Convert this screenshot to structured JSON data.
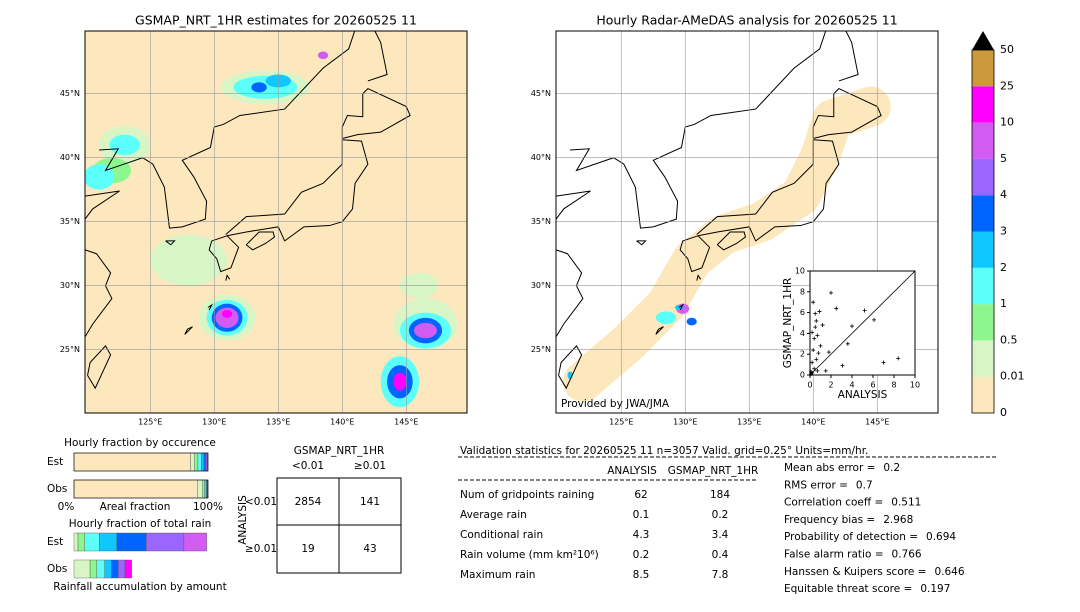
{
  "left_map": {
    "title": "GSMAP_NRT_1HR estimates for 20260525 11",
    "lat_labels": [
      "45°N",
      "40°N",
      "35°N",
      "30°N",
      "25°N"
    ],
    "lon_labels": [
      "125°E",
      "130°E",
      "135°E",
      "140°E",
      "145°E"
    ]
  },
  "right_map": {
    "title": "Hourly Radar-AMeDAS analysis for 20260525 11",
    "lat_labels": [
      "45°N",
      "40°N",
      "35°N",
      "30°N",
      "25°N"
    ],
    "lon_labels": [
      "125°E",
      "130°E",
      "135°E",
      "140°E",
      "145°E"
    ],
    "credit": "Provided by JWA/JMA"
  },
  "colorbar": {
    "labels": [
      "0",
      "0.01",
      "0.5",
      "1",
      "2",
      "3",
      "4",
      "5",
      "10",
      "25",
      "50"
    ],
    "colors": [
      "#fde8bd",
      "#d8f5c6",
      "#8ef68e",
      "#5cfffa",
      "#10c8ff",
      "#0064ff",
      "#9a66ff",
      "#d25cf2",
      "#ff00ff",
      "#cc9a3c"
    ]
  },
  "scatter": {
    "xlabel": "ANALYSIS",
    "ylabel": "GSMAP_NRT_1HR",
    "xlim": [
      0,
      10
    ],
    "ylim": [
      0,
      10
    ],
    "xticks": [
      0,
      2,
      4,
      6,
      8,
      10
    ],
    "yticks": [
      0,
      2,
      4,
      6,
      8,
      10
    ],
    "x": [
      0.1,
      0.2,
      0.3,
      0.4,
      0.5,
      0.6,
      0.7,
      0.8,
      0.2,
      0.4,
      0.6,
      0.9,
      1.2,
      1.5,
      2.0,
      0.3,
      0.5,
      1.0,
      2.5,
      3.1,
      4.0,
      5.2,
      6.1,
      7.0,
      8.4,
      0.1,
      0.2,
      1.8,
      0.7,
      3.6
    ],
    "y": [
      0.3,
      1.2,
      2.4,
      3.5,
      4.6,
      5.2,
      3.8,
      2.1,
      4.1,
      0.6,
      1.5,
      6.1,
      4.8,
      0.4,
      7.9,
      7.0,
      5.9,
      2.8,
      6.4,
      0.9,
      4.7,
      6.2,
      5.3,
      1.2,
      1.6,
      0.1,
      0.2,
      2.2,
      0.4,
      3.0
    ]
  },
  "occurrence": {
    "title": "Hourly fraction by occurence",
    "rows": [
      "Est",
      "Obs"
    ],
    "est": [
      0.87,
      0.03,
      0.025,
      0.025,
      0.02,
      0.012,
      0.01,
      0.005,
      0.003,
      0
    ],
    "obs": [
      0.92,
      0.04,
      0.015,
      0.01,
      0.006,
      0.004,
      0.003,
      0.001,
      0.001,
      0
    ],
    "left": "0%",
    "xlabel": "Areal fraction",
    "right": "100%"
  },
  "total_rain": {
    "title": "Hourly fraction of total rain",
    "rows": [
      "Est",
      "Obs"
    ],
    "est": [
      0,
      0.03,
      0.05,
      0.11,
      0.13,
      0.22,
      0.28,
      0.17,
      0,
      0
    ],
    "obs": [
      0,
      0.12,
      0.05,
      0.06,
      0.05,
      0.05,
      0.05,
      0,
      0.05,
      0
    ],
    "caption": "Rainfall accumulation by amount"
  },
  "contingency": {
    "title": "GSMAP_NRT_1HR",
    "cols": [
      "<0.01",
      "≥0.01"
    ],
    "row_title": "ANALYSIS",
    "rows": [
      "<0.01",
      "≥0.01"
    ],
    "cells": [
      [
        2854,
        141
      ],
      [
        19,
        43
      ]
    ]
  },
  "validation": {
    "heading": "Validation statistics for 20260525 11  n=3057 Valid. grid=0.25° Units=mm/hr.",
    "cols": [
      "ANALYSIS",
      "GSMAP_NRT_1HR"
    ],
    "rows": [
      {
        "name": "Num of gridpoints raining",
        "analysis": 62,
        "gsmap": 184
      },
      {
        "name": "Average rain",
        "analysis": 0.1,
        "gsmap": 0.2
      },
      {
        "name": "Conditional rain",
        "analysis": 4.3,
        "gsmap": 3.4
      },
      {
        "name": "Rain volume (mm km²10⁶)",
        "analysis": 0.2,
        "gsmap": 0.4
      },
      {
        "name": "Maximum rain",
        "analysis": 8.5,
        "gsmap": 7.8
      }
    ],
    "scores": [
      {
        "name": "Mean abs error =",
        "value": 0.2
      },
      {
        "name": "RMS error =",
        "value": 0.7
      },
      {
        "name": "Correlation coeff =",
        "value": 0.511
      },
      {
        "name": "Frequency bias =",
        "value": 2.968
      },
      {
        "name": "Probability of detection =",
        "value": 0.694
      },
      {
        "name": "False alarm ratio =",
        "value": 0.766
      },
      {
        "name": "Hanssen & Kuipers score =",
        "value": 0.646
      },
      {
        "name": "Equitable threat score =",
        "value": 0.197
      }
    ]
  }
}
